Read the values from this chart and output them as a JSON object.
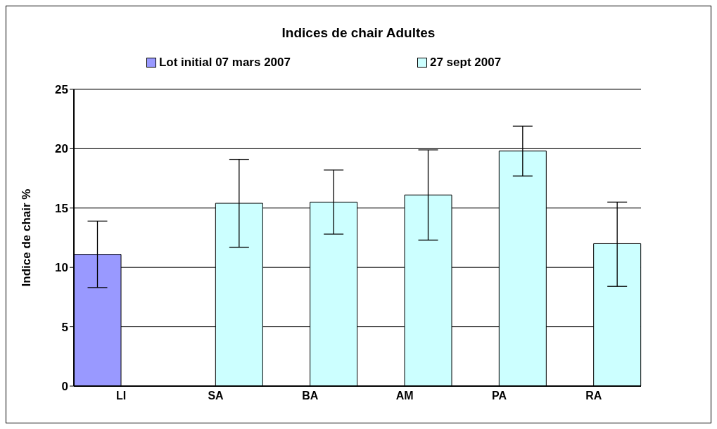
{
  "chart_data": {
    "type": "bar",
    "title": "Indices de chair Adultes",
    "ylabel": "Indice de chair %",
    "categories": [
      "LI",
      "SA",
      "BA",
      "AM",
      "PA",
      "RA"
    ],
    "series": [
      {
        "name": "Lot initial 07 mars 2007",
        "color": "#9999ff",
        "values": [
          11.1,
          null,
          null,
          null,
          null,
          null
        ],
        "errors": [
          [
            8.3,
            13.9
          ],
          null,
          null,
          null,
          null,
          null
        ]
      },
      {
        "name": "27 sept 2007",
        "color": "#ccffff",
        "values": [
          null,
          15.4,
          15.5,
          16.1,
          19.8,
          12.0
        ],
        "errors": [
          null,
          [
            11.7,
            19.1
          ],
          [
            12.8,
            18.2
          ],
          [
            12.3,
            19.9
          ],
          [
            17.7,
            21.9
          ],
          [
            8.4,
            15.5
          ]
        ]
      }
    ],
    "ylim": [
      0,
      25
    ],
    "yticks": [
      0,
      5,
      10,
      15,
      20,
      25
    ],
    "grid": "y",
    "legend": "top"
  }
}
